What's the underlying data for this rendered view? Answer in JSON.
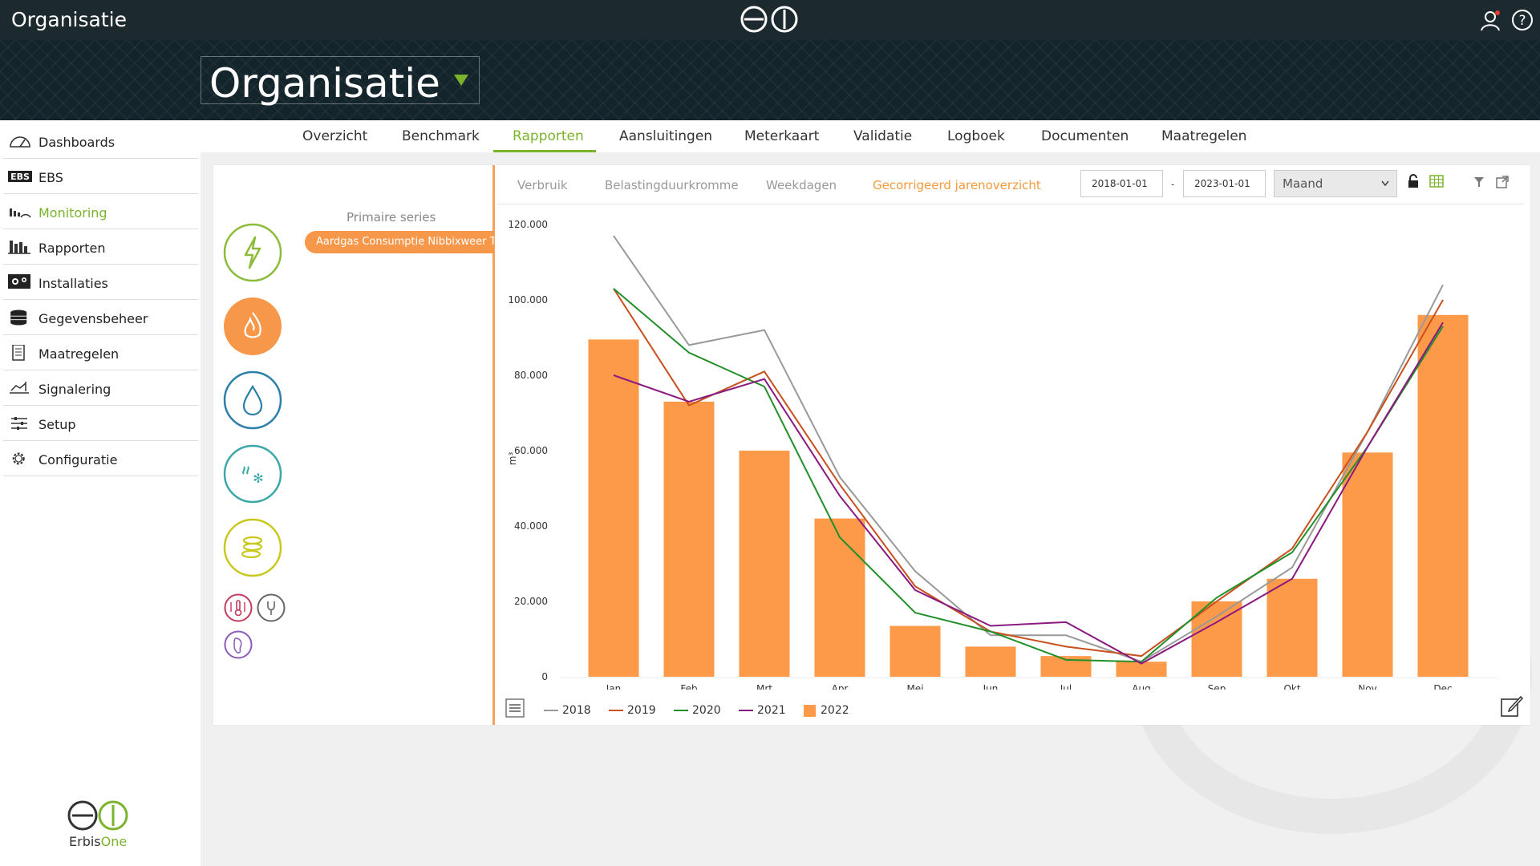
{
  "app": {
    "title": "Organisatie"
  },
  "organisation": {
    "name": "Organisatie"
  },
  "sidebar": {
    "items": [
      {
        "label": "Dashboards",
        "icon": "gauge-icon"
      },
      {
        "label": "EBS",
        "icon": "ebs-icon"
      },
      {
        "label": "Monitoring",
        "icon": "monitoring-icon",
        "active": true
      },
      {
        "label": "Rapporten",
        "icon": "bar-chart-icon"
      },
      {
        "label": "Installaties",
        "icon": "installations-icon"
      },
      {
        "label": "Gegevensbeheer",
        "icon": "database-icon"
      },
      {
        "label": "Maatregelen",
        "icon": "checklist-icon"
      },
      {
        "label": "Signalering",
        "icon": "signal-icon"
      },
      {
        "label": "Setup",
        "icon": "sliders-icon"
      },
      {
        "label": "Configuratie",
        "icon": "gear-icon"
      }
    ],
    "brand": {
      "name_part1": "Erbis",
      "name_part2": "One"
    }
  },
  "tabs": [
    "Overzicht",
    "Benchmark",
    "Rapporten",
    "Aansluitingen",
    "Meterkaart",
    "Validatie",
    "Logboek",
    "Documenten",
    "Maatregelen"
  ],
  "active_tab": "Rapporten",
  "panel": {
    "series_title": "Primaire series",
    "series_chip": "Aardgas Consumptie Nibbixweer Totaal",
    "subtabs": [
      "Verbruik",
      "Belastingduurkromme",
      "Weekdagen",
      "Gecorrigeerd jarenoverzicht"
    ],
    "active_subtab": "Gecorrigeerd jarenoverzicht",
    "date_from": "2018-01-01",
    "date_sep": "-",
    "date_to": "2023-01-01",
    "period": "Maand"
  },
  "colors": {
    "accent_green": "#7ab42c",
    "accent_orange": "#f39a3c",
    "bar_2022": "#fd9a4a",
    "line_2018": "#999999",
    "line_2019": "#c8501e",
    "line_2020": "#21902a",
    "line_2021": "#8a1a80"
  },
  "chart_data": {
    "type": "bar",
    "ylabel": "m³",
    "ylim": [
      0,
      120000
    ],
    "yticks": [
      "0",
      "20.000",
      "40.000",
      "60.000",
      "80.000",
      "100.000",
      "120.000"
    ],
    "categories": [
      "Jan",
      "Feb",
      "Mrt",
      "Apr",
      "Mei",
      "Jun",
      "Jul",
      "Aug",
      "Sep",
      "Okt",
      "Nov",
      "Dec"
    ],
    "series": [
      {
        "name": "2018",
        "type": "line",
        "color": "#999999",
        "values": [
          117000,
          88000,
          92000,
          53000,
          28000,
          11000,
          11000,
          4000,
          16000,
          29000,
          65000,
          104000
        ]
      },
      {
        "name": "2019",
        "type": "line",
        "color": "#c8501e",
        "values": [
          103000,
          72000,
          81000,
          51000,
          24000,
          12000,
          8000,
          5500,
          20000,
          34000,
          65000,
          100000
        ]
      },
      {
        "name": "2020",
        "type": "line",
        "color": "#21902a",
        "values": [
          103000,
          86000,
          77000,
          37000,
          17000,
          12000,
          4500,
          4000,
          21000,
          33000,
          61000,
          93000
        ]
      },
      {
        "name": "2021",
        "type": "line",
        "color": "#8a1a80",
        "values": [
          80000,
          73000,
          79000,
          48000,
          23000,
          13500,
          14500,
          3500,
          14500,
          26000,
          61000,
          94000
        ]
      },
      {
        "name": "2022",
        "type": "bar",
        "color": "#fd9a4a",
        "values": [
          89500,
          73000,
          60000,
          42000,
          13500,
          8000,
          5500,
          4000,
          20000,
          26000,
          59500,
          96000
        ]
      }
    ],
    "legend_position": "bottom-left"
  }
}
